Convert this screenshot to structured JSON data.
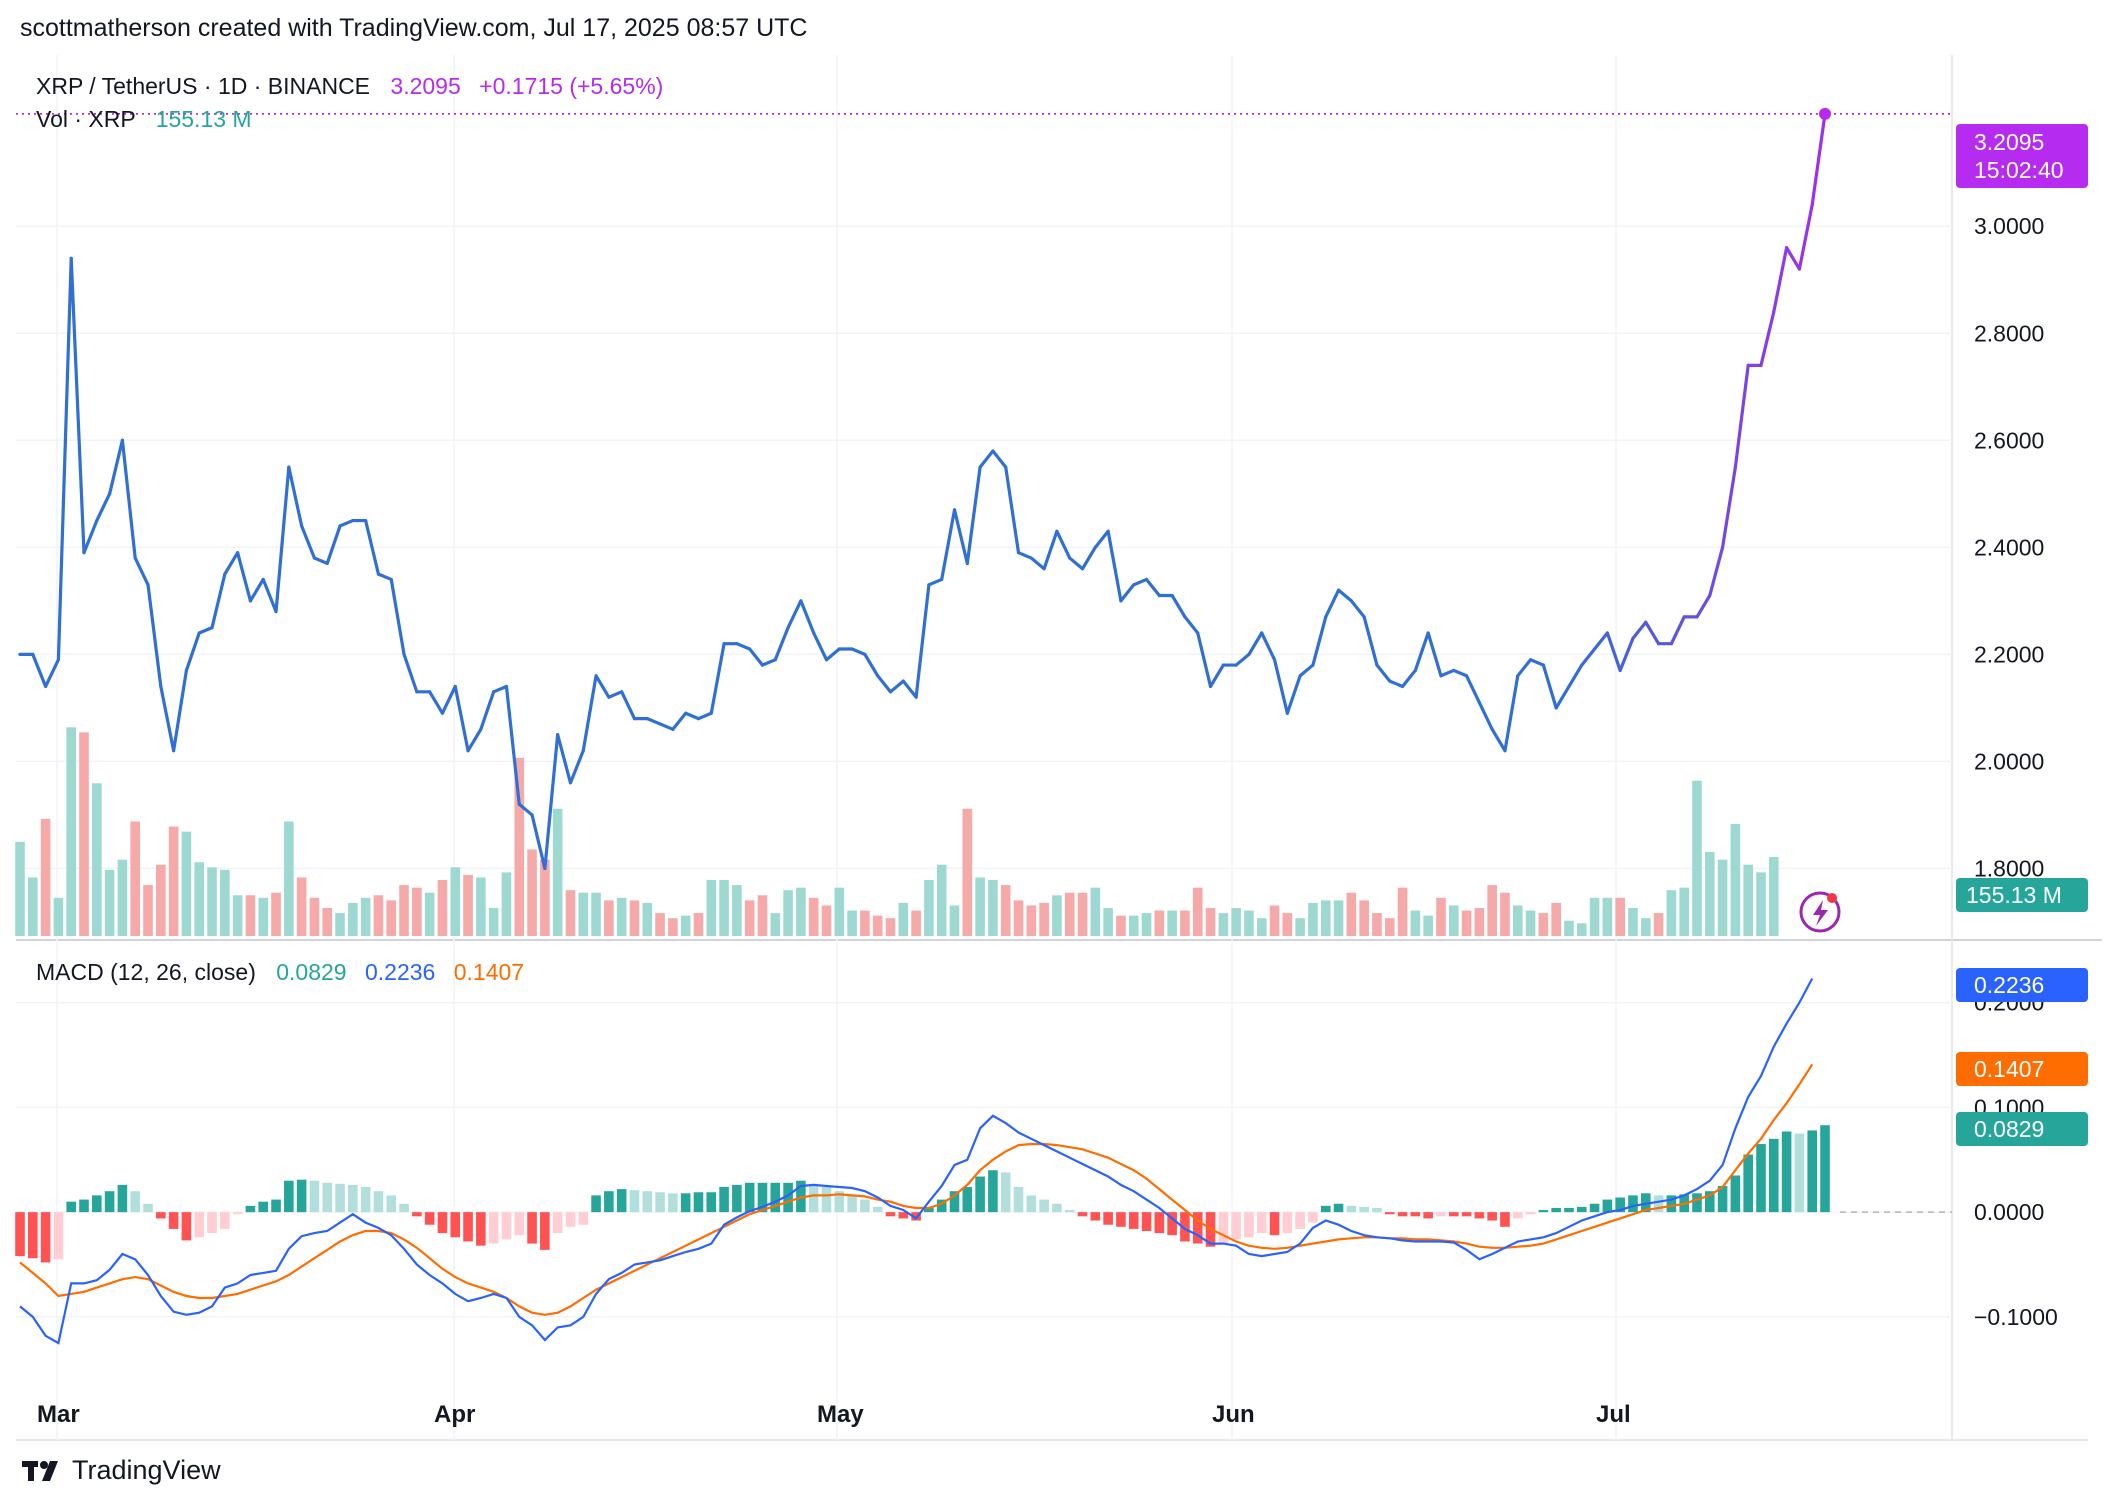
{
  "header": {
    "text": "scottmatherson created with TradingView.com, Jul 17, 2025 08:57 UTC"
  },
  "legend": {
    "symbol": "XRP / TetherUS · 1D · BINANCE",
    "last": "3.2095",
    "change": "+0.1715 (+5.65%)",
    "vol_label": "Vol · XRP",
    "vol_value": "155.13 M",
    "macd_label": "MACD (12, 26, close)",
    "macd_hist": "0.0829",
    "macd_line": "0.2236",
    "macd_signal": "0.1407"
  },
  "price_axis": {
    "ticks": [
      "3.0000",
      "2.8000",
      "2.6000",
      "2.4000",
      "2.2000",
      "2.0000",
      "1.8000"
    ],
    "last_badge": "3.2095",
    "countdown": "15:02:40",
    "vol_badge": "155.13 M"
  },
  "macd_axis": {
    "ticks": [
      "0.2000",
      "0.1000",
      "0.0000",
      "−0.1000"
    ],
    "badge_macd": "0.2236",
    "badge_signal": "0.1407",
    "badge_hist": "0.0829"
  },
  "time_axis": {
    "labels": [
      "Mar",
      "Apr",
      "May",
      "Jun",
      "Jul"
    ]
  },
  "footer": {
    "brand": "TradingView"
  },
  "colors": {
    "price_line": "#2f6fd6",
    "price_line_end": "#9b30f0",
    "up": "#26a69a",
    "down": "#ef5350",
    "macd": "#2962ff",
    "signal": "#ff6d00",
    "badge_price": "#b52cf0"
  },
  "chart_data": [
    {
      "type": "line",
      "title": "",
      "series": [
        {
          "name": "XRP / TetherUS",
          "values": [
            2.2,
            2.2,
            2.14,
            2.19,
            2.94,
            2.39,
            2.45,
            2.5,
            2.6,
            2.38,
            2.33,
            2.14,
            2.02,
            2.17,
            2.24,
            2.25,
            2.35,
            2.39,
            2.3,
            2.34,
            2.28,
            2.55,
            2.44,
            2.38,
            2.37,
            2.44,
            2.45,
            2.45,
            2.35,
            2.34,
            2.2,
            2.13,
            2.13,
            2.09,
            2.14,
            2.02,
            2.06,
            2.13,
            2.14,
            1.92,
            1.9,
            1.8,
            2.05,
            1.96,
            2.02,
            2.16,
            2.12,
            2.13,
            2.08,
            2.08,
            2.07,
            2.06,
            2.09,
            2.08,
            2.09,
            2.22,
            2.22,
            2.21,
            2.18,
            2.19,
            2.25,
            2.3,
            2.24,
            2.19,
            2.21,
            2.21,
            2.2,
            2.16,
            2.13,
            2.15,
            2.12,
            2.33,
            2.34,
            2.47,
            2.37,
            2.55,
            2.58,
            2.55,
            2.39,
            2.38,
            2.36,
            2.43,
            2.38,
            2.36,
            2.4,
            2.43,
            2.3,
            2.33,
            2.34,
            2.31,
            2.31,
            2.27,
            2.24,
            2.14,
            2.18,
            2.18,
            2.2,
            2.24,
            2.19,
            2.09,
            2.16,
            2.18,
            2.27,
            2.32,
            2.3,
            2.27,
            2.18,
            2.15,
            2.14,
            2.17,
            2.24,
            2.16,
            2.17,
            2.16,
            2.11,
            2.06,
            2.02,
            2.16,
            2.19,
            2.18,
            2.1,
            2.14,
            2.18,
            2.21,
            2.24,
            2.17,
            2.23,
            2.26,
            2.22,
            2.22,
            2.27,
            2.27,
            2.31,
            2.4,
            2.55,
            2.74,
            2.74,
            2.84,
            2.96,
            2.92,
            3.04,
            3.21
          ]
        }
      ],
      "ylim": [
        1.67,
        3.32
      ]
    },
    {
      "type": "bar",
      "title": "",
      "series": [
        {
          "name": "Vol · XRP",
          "values": [
            185,
            115,
            230,
            75,
            410,
            400,
            300,
            130,
            150,
            225,
            100,
            140,
            215,
            205,
            145,
            135,
            130,
            80,
            80,
            75,
            85,
            225,
            115,
            75,
            55,
            45,
            65,
            75,
            80,
            70,
            100,
            95,
            85,
            110,
            135,
            120,
            115,
            55,
            125,
            350,
            170,
            150,
            250,
            90,
            85,
            85,
            70,
            75,
            70,
            65,
            45,
            35,
            40,
            45,
            110,
            110,
            100,
            70,
            80,
            45,
            90,
            95,
            75,
            60,
            95,
            50,
            50,
            40,
            35,
            65,
            50,
            110,
            140,
            60,
            250,
            115,
            110,
            100,
            70,
            60,
            65,
            80,
            85,
            85,
            95,
            55,
            40,
            40,
            45,
            50,
            50,
            50,
            95,
            55,
            45,
            55,
            50,
            35,
            60,
            45,
            35,
            65,
            70,
            70,
            85,
            70,
            45,
            35,
            95,
            50,
            40,
            75,
            60,
            50,
            55,
            100,
            85,
            60,
            50,
            45,
            65,
            30,
            25,
            75,
            75,
            75,
            55,
            35,
            45,
            90,
            95,
            305,
            165,
            150,
            220,
            140,
            125,
            155
          ]
        }
      ]
    },
    {
      "type": "bar",
      "title": "MACD (12, 26, close)",
      "series": [
        {
          "name": "Histogram",
          "values": [
            -0.042,
            -0.044,
            -0.048,
            -0.045,
            0.01,
            0.012,
            0.016,
            0.02,
            0.026,
            0.02,
            0.008,
            -0.006,
            -0.016,
            -0.027,
            -0.024,
            -0.02,
            -0.016,
            -0.002,
            0.006,
            0.01,
            0.012,
            0.03,
            0.031,
            0.03,
            0.028,
            0.027,
            0.026,
            0.024,
            0.02,
            0.016,
            0.008,
            -0.004,
            -0.012,
            -0.02,
            -0.024,
            -0.028,
            -0.032,
            -0.03,
            -0.026,
            -0.022,
            -0.03,
            -0.036,
            -0.02,
            -0.014,
            -0.012,
            0.016,
            0.02,
            0.022,
            0.021,
            0.02,
            0.019,
            0.018,
            0.018,
            0.019,
            0.019,
            0.024,
            0.026,
            0.028,
            0.028,
            0.028,
            0.028,
            0.03,
            0.027,
            0.024,
            0.02,
            0.016,
            0.012,
            0.005,
            -0.004,
            -0.006,
            -0.008,
            0.004,
            0.012,
            0.02,
            0.024,
            0.034,
            0.04,
            0.038,
            0.024,
            0.016,
            0.012,
            0.008,
            0.002,
            -0.004,
            -0.008,
            -0.012,
            -0.014,
            -0.016,
            -0.018,
            -0.02,
            -0.022,
            -0.028,
            -0.03,
            -0.033,
            -0.03,
            -0.026,
            -0.024,
            -0.02,
            -0.022,
            -0.02,
            -0.016,
            -0.01,
            0.006,
            0.008,
            0.006,
            0.005,
            0.004,
            -0.002,
            -0.004,
            -0.004,
            -0.006,
            -0.004,
            -0.004,
            -0.004,
            -0.006,
            -0.008,
            -0.014,
            -0.006,
            -0.002,
            0.002,
            0.004,
            0.004,
            0.005,
            0.008,
            0.012,
            0.014,
            0.016,
            0.018,
            0.016,
            0.016,
            0.017,
            0.018,
            0.02,
            0.025,
            0.035,
            0.055,
            0.065,
            0.07,
            0.077,
            0.075,
            0.078,
            0.083
          ]
        },
        {
          "name": "MACD",
          "values": [
            -0.09,
            -0.1,
            -0.118,
            -0.125,
            -0.068,
            -0.068,
            -0.065,
            -0.055,
            -0.04,
            -0.045,
            -0.06,
            -0.08,
            -0.095,
            -0.098,
            -0.096,
            -0.09,
            -0.072,
            -0.068,
            -0.06,
            -0.058,
            -0.056,
            -0.035,
            -0.023,
            -0.02,
            -0.018,
            -0.01,
            -0.002,
            -0.01,
            -0.015,
            -0.022,
            -0.035,
            -0.05,
            -0.06,
            -0.068,
            -0.078,
            -0.085,
            -0.082,
            -0.078,
            -0.082,
            -0.1,
            -0.108,
            -0.122,
            -0.11,
            -0.108,
            -0.1,
            -0.078,
            -0.064,
            -0.058,
            -0.05,
            -0.048,
            -0.046,
            -0.042,
            -0.038,
            -0.035,
            -0.03,
            -0.012,
            -0.005,
            0.001,
            0.005,
            0.01,
            0.016,
            0.025,
            0.026,
            0.025,
            0.024,
            0.023,
            0.02,
            0.014,
            0.006,
            0.002,
            -0.006,
            0.01,
            0.025,
            0.045,
            0.05,
            0.08,
            0.092,
            0.085,
            0.076,
            0.07,
            0.064,
            0.058,
            0.052,
            0.046,
            0.04,
            0.034,
            0.026,
            0.02,
            0.012,
            0.004,
            -0.006,
            -0.016,
            -0.022,
            -0.03,
            -0.03,
            -0.032,
            -0.04,
            -0.042,
            -0.04,
            -0.038,
            -0.03,
            -0.015,
            -0.008,
            -0.012,
            -0.018,
            -0.022,
            -0.024,
            -0.025,
            -0.027,
            -0.028,
            -0.028,
            -0.028,
            -0.029,
            -0.036,
            -0.045,
            -0.04,
            -0.034,
            -0.028,
            -0.026,
            -0.024,
            -0.02,
            -0.014,
            -0.008,
            -0.004,
            0.0,
            0.002,
            0.006,
            0.008,
            0.01,
            0.012,
            0.016,
            0.022,
            0.03,
            0.045,
            0.08,
            0.11,
            0.13,
            0.158,
            0.18,
            0.2,
            0.223
          ]
        },
        {
          "name": "Signal",
          "values": [
            -0.048,
            -0.058,
            -0.068,
            -0.08,
            -0.078,
            -0.076,
            -0.072,
            -0.068,
            -0.064,
            -0.062,
            -0.064,
            -0.07,
            -0.076,
            -0.08,
            -0.082,
            -0.082,
            -0.08,
            -0.078,
            -0.074,
            -0.07,
            -0.066,
            -0.06,
            -0.052,
            -0.044,
            -0.036,
            -0.028,
            -0.022,
            -0.018,
            -0.018,
            -0.02,
            -0.026,
            -0.034,
            -0.044,
            -0.054,
            -0.062,
            -0.068,
            -0.072,
            -0.076,
            -0.082,
            -0.09,
            -0.096,
            -0.098,
            -0.096,
            -0.09,
            -0.082,
            -0.074,
            -0.068,
            -0.062,
            -0.056,
            -0.05,
            -0.044,
            -0.038,
            -0.032,
            -0.026,
            -0.02,
            -0.014,
            -0.008,
            -0.002,
            0.002,
            0.006,
            0.01,
            0.014,
            0.016,
            0.016,
            0.017,
            0.016,
            0.015,
            0.012,
            0.01,
            0.006,
            0.004,
            0.004,
            0.008,
            0.016,
            0.026,
            0.04,
            0.05,
            0.058,
            0.064,
            0.065,
            0.065,
            0.064,
            0.062,
            0.06,
            0.056,
            0.052,
            0.046,
            0.04,
            0.032,
            0.022,
            0.012,
            0.002,
            -0.008,
            -0.016,
            -0.022,
            -0.028,
            -0.032,
            -0.034,
            -0.035,
            -0.034,
            -0.032,
            -0.03,
            -0.028,
            -0.026,
            -0.025,
            -0.024,
            -0.024,
            -0.025,
            -0.025,
            -0.026,
            -0.026,
            -0.027,
            -0.028,
            -0.03,
            -0.033,
            -0.034,
            -0.034,
            -0.033,
            -0.032,
            -0.03,
            -0.026,
            -0.022,
            -0.018,
            -0.014,
            -0.01,
            -0.006,
            -0.002,
            0.002,
            0.004,
            0.006,
            0.008,
            0.012,
            0.016,
            0.024,
            0.04,
            0.056,
            0.07,
            0.088,
            0.104,
            0.122,
            0.141
          ]
        }
      ],
      "ylim": [
        -0.165,
        0.255
      ]
    }
  ]
}
